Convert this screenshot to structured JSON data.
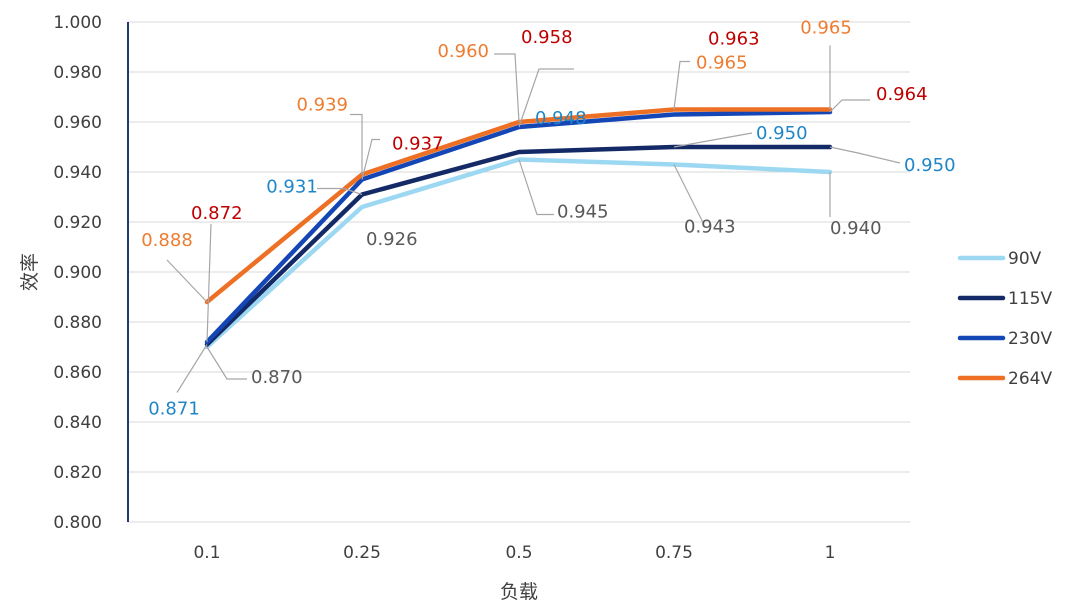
{
  "chart_data": {
    "type": "line",
    "xlabel": "负载",
    "ylabel": "效率",
    "categories": [
      "0.1",
      "0.25",
      "0.5",
      "0.75",
      "1"
    ],
    "ylim": [
      0.8,
      1.0
    ],
    "y_ticks": [
      "0.800",
      "0.820",
      "0.840",
      "0.860",
      "0.880",
      "0.900",
      "0.920",
      "0.940",
      "0.960",
      "0.980",
      "1.000"
    ],
    "grid": true,
    "legend_position": "right",
    "series": [
      {
        "name": "90V",
        "color": "#9dd8f3",
        "label_color": "#595959",
        "values": [
          0.87,
          0.926,
          0.945,
          0.943,
          0.94
        ],
        "labels": [
          "0.870",
          "0.926",
          "0.945",
          "0.943",
          "0.940"
        ]
      },
      {
        "name": "115V",
        "color": "#142a66",
        "label_color": "#1f86c7",
        "values": [
          0.871,
          0.931,
          0.948,
          0.95,
          0.95
        ],
        "labels": [
          "0.871",
          "0.931",
          "0.948",
          "0.950",
          "0.950"
        ]
      },
      {
        "name": "230V",
        "color": "#1446b5",
        "label_color": "#c00000",
        "values": [
          0.872,
          0.937,
          0.958,
          0.963,
          0.964
        ],
        "labels": [
          "0.872",
          "0.937",
          "0.958",
          "0.963",
          "0.964"
        ]
      },
      {
        "name": "264V",
        "color": "#ed7024",
        "label_color": "#ed7d31",
        "values": [
          0.888,
          0.939,
          0.96,
          0.965,
          0.965
        ],
        "labels": [
          "0.888",
          "0.939",
          "0.960",
          "0.965",
          "0.965"
        ]
      }
    ]
  }
}
